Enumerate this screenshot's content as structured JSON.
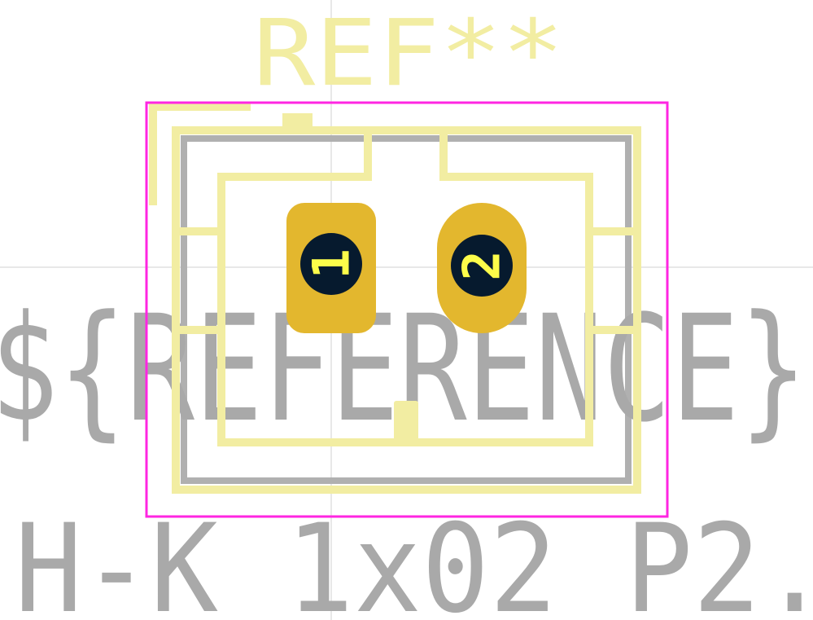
{
  "footprint": {
    "ref_text": "REF**",
    "reference_field_text": "${REFERENCE}",
    "value_text": "H-K_1x02_P2.",
    "pads": [
      {
        "number": "1",
        "shape": "roundrect"
      },
      {
        "number": "2",
        "shape": "oval"
      }
    ]
  },
  "colors": {
    "background": "#ffffff",
    "silkscreen": "#f2eda2",
    "fabrication": "#b0b0b0",
    "courtyard": "#ff26e2",
    "pad_copper": "#e3b72e",
    "drill_hole": "#061a2e",
    "pad_number": "#fdfd4a",
    "crosshair": "#c8c8c8"
  }
}
